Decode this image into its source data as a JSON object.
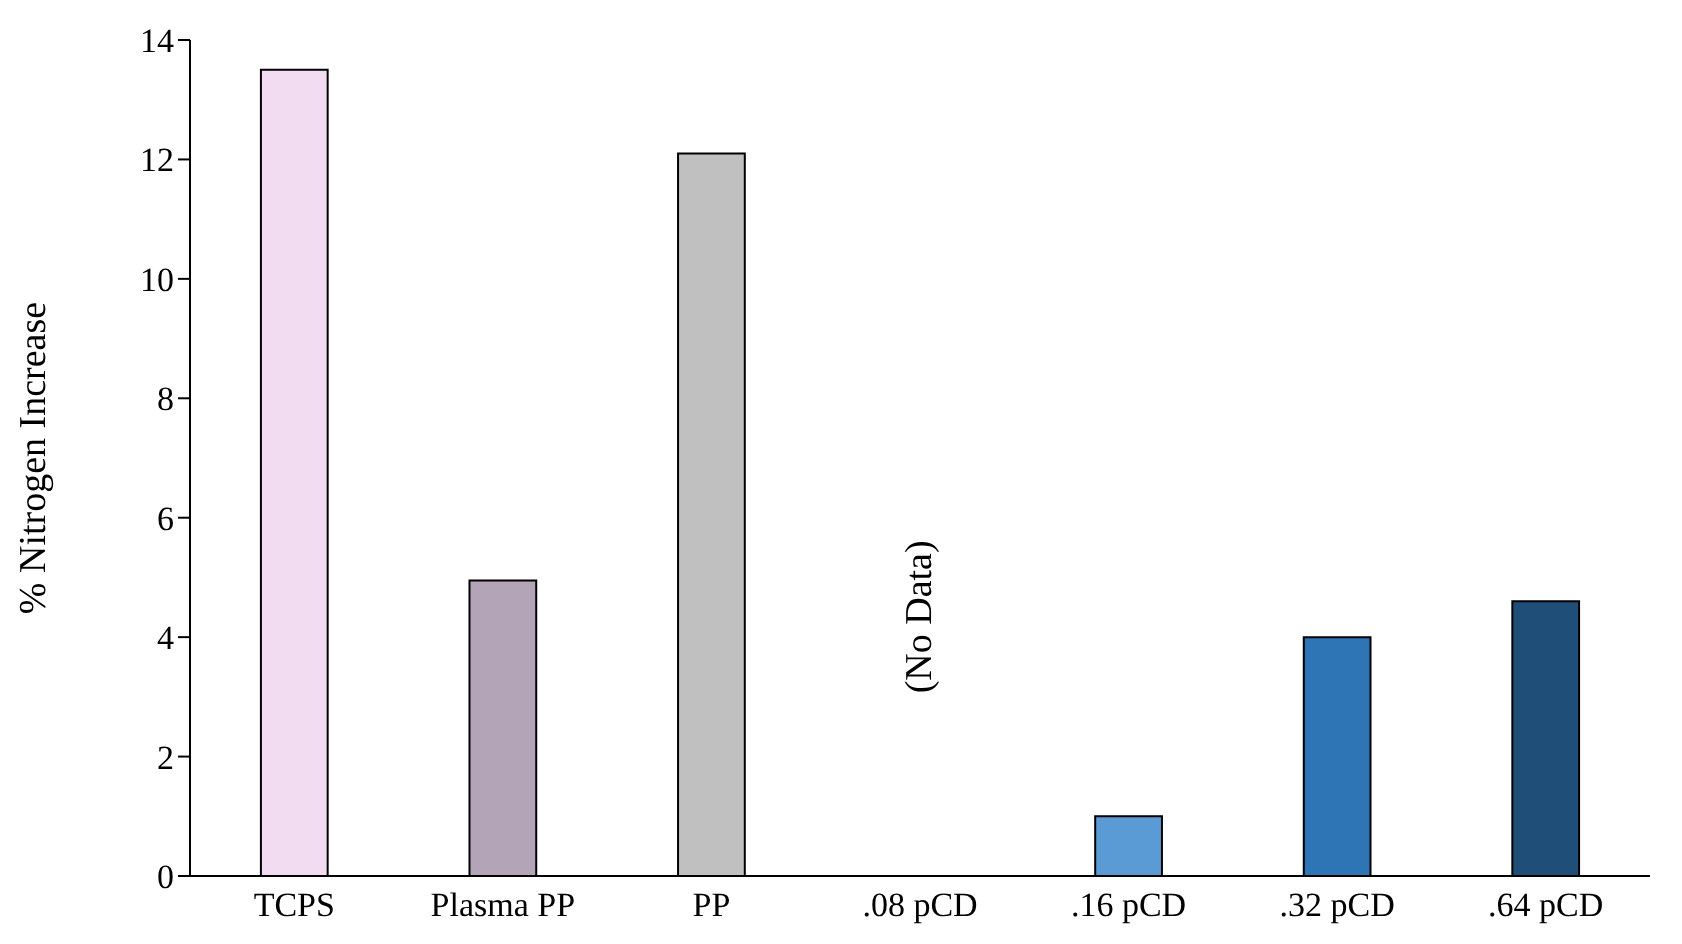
{
  "chart_data": {
    "type": "bar",
    "ylabel": "% Nitrogen Increase",
    "categories": [
      "TCPS",
      "Plasma PP",
      "PP",
      ".08 pCD",
      ".16 pCD",
      ".32 pCD",
      ".64 pCD"
    ],
    "values": [
      13.5,
      4.95,
      12.1,
      null,
      1.0,
      4.0,
      4.6
    ],
    "colors": [
      "#f2dcf2",
      "#b4a4b8",
      "#c0c0c0",
      "#5b9bd5",
      "#5b9bd5",
      "#2e75b6",
      "#1f4e79"
    ],
    "ylim": [
      0,
      14
    ],
    "yticks": [
      0,
      2,
      4,
      6,
      8,
      10,
      12,
      14
    ],
    "grid": false,
    "annotations": [
      "(No Data)"
    ]
  }
}
